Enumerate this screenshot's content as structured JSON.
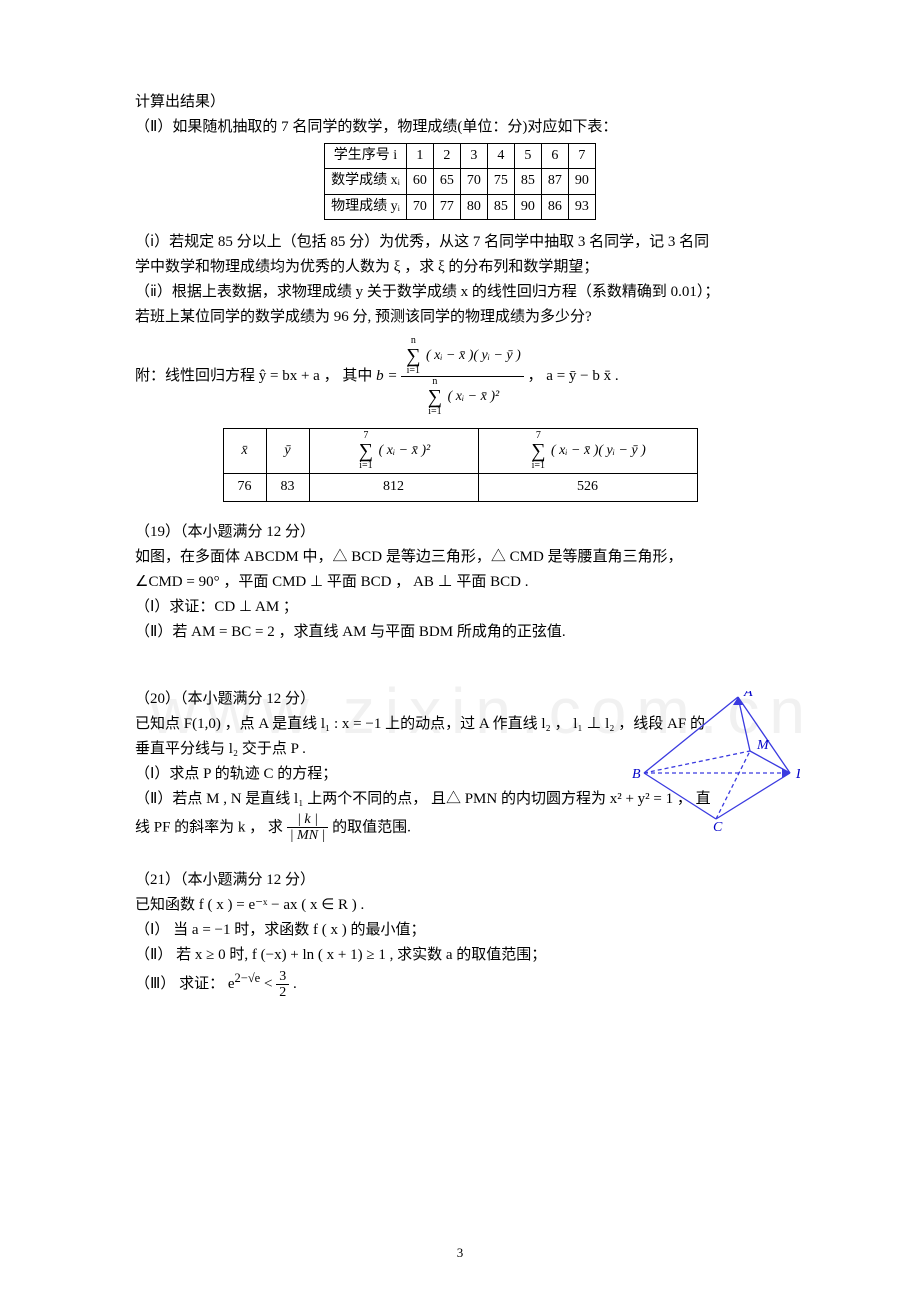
{
  "intro": {
    "line0": "计算出结果）",
    "line0b": "（Ⅱ）如果随机抽取的 7 名同学的数学，物理成绩(单位：分)对应如下表："
  },
  "table1": {
    "rows": [
      [
        "学生序号 i",
        "1",
        "2",
        "3",
        "4",
        "5",
        "6",
        "7"
      ],
      [
        "数学成绩 xᵢ",
        "60",
        "65",
        "70",
        "75",
        "85",
        "87",
        "90"
      ],
      [
        "物理成绩 yᵢ",
        "70",
        "77",
        "80",
        "85",
        "90",
        "86",
        "93"
      ]
    ]
  },
  "paraA": {
    "l1": "（ⅰ）若规定 85 分以上（包括 85 分）为优秀，从这 7 名同学中抽取 3 名同学，记 3 名同",
    "l2": "学中数学和物理成绩均为优秀的人数为 ξ ，求 ξ 的分布列和数学期望；",
    "l3": "（ⅱ）根据上表数据，求物理成绩 y 关于数学成绩 x 的线性回归方程（系数精确到 0.01）；",
    "l4": "若班上某位同学的数学成绩为 96 分, 预测该同学的物理成绩为多少分?"
  },
  "attach": {
    "label": "附：线性回归方程 ŷ = bx + a ， 其中 ",
    "tail": " ，  a = ȳ − b x̄ .",
    "b_eq": "b =",
    "sum_top_lim_u": "n",
    "sum_top_lim_l": "i=1",
    "num_expr": "( xᵢ − x̄ )( yᵢ − ȳ )",
    "den_expr": "( xᵢ − x̄ )²"
  },
  "table2": {
    "headers": [
      "x̄",
      "ȳ",
      "sig_sq",
      "sig_xy"
    ],
    "header_expr_sq": "∑᷉ᵢ₌₁⁷ ( xᵢ − x̄ )²",
    "header_expr_xy": "∑᷉ᵢ₌₁⁷ ( xᵢ − x̄ )( yᵢ − ȳ )",
    "row": [
      "76",
      "83",
      "812",
      "526"
    ]
  },
  "q19": {
    "head": "（19）（本小题满分 12 分）",
    "l1": " 如图，在多面体 ABCDM 中，△ BCD 是等边三角形，△ CMD 是等腰直角三角形，",
    "l2": " ∠CMD = 90° ，平面 CMD ⊥ 平面 BCD ， AB ⊥ 平面 BCD .",
    "l3": "（Ⅰ）求证：CD ⊥ AM ；",
    "l4": "（Ⅱ）若 AM = BC = 2 ，求直线 AM 与平面 BDM 所成角的正弦值."
  },
  "q20": {
    "head": "（20）（本小题满分 12 分）",
    "l1": "已知点 F(1,0) ，点 A 是直线 l₁ : x = −1 上的动点，过 A 作直线 l₂ ， l₁ ⊥ l₂ ，线段 AF 的",
    "l2": "垂直平分线与 l₂ 交于点 P .",
    "l3": "（Ⅰ）求点 P 的轨迹 C 的方程；",
    "l4a": "（Ⅱ）若点 M , N 是直线 l₁ 上两个不同的点， 且△ PMN 的内切圆方程为 x² + y² = 1 ， 直",
    "l5a_pre": "线 PF 的斜率为 k ， 求 ",
    "l5a_post": " 的取值范围.",
    "frac_n": "| k |",
    "frac_d": "| MN |"
  },
  "q21": {
    "head": "（21）（本小题满分 12 分）",
    "l1": "已知函数 f ( x ) = e⁻ˣ − ax  ( x ∈ R ) .",
    "l2": "（Ⅰ） 当 a = −1 时，求函数 f ( x ) 的最小值；",
    "l3": "（Ⅱ） 若 x ≥ 0 时,  f (−x) + ln ( x + 1) ≥ 1 , 求实数 a 的取值范围；",
    "l4_pre": "（Ⅲ） 求证： ",
    "l4_expr": "e^{2−√e} < 3/2",
    "l4_lhs": "e",
    "l4_sup": "2−√e",
    "l4_lt": " < ",
    "l4_rn": "3",
    "l4_rd": "2",
    "l4_post": " ."
  },
  "labels": {
    "A": "A",
    "B": "B",
    "C": "C",
    "D": "D",
    "M": "M"
  },
  "watermark_text": "www.zixin.com.cn",
  "pagenum": "3",
  "style": {
    "diagram_stroke": "#3a3ae0",
    "diagram_dash": "4,3",
    "label_color": "#0000c8",
    "label_font": "italic 14px 'Times New Roman', serif"
  }
}
